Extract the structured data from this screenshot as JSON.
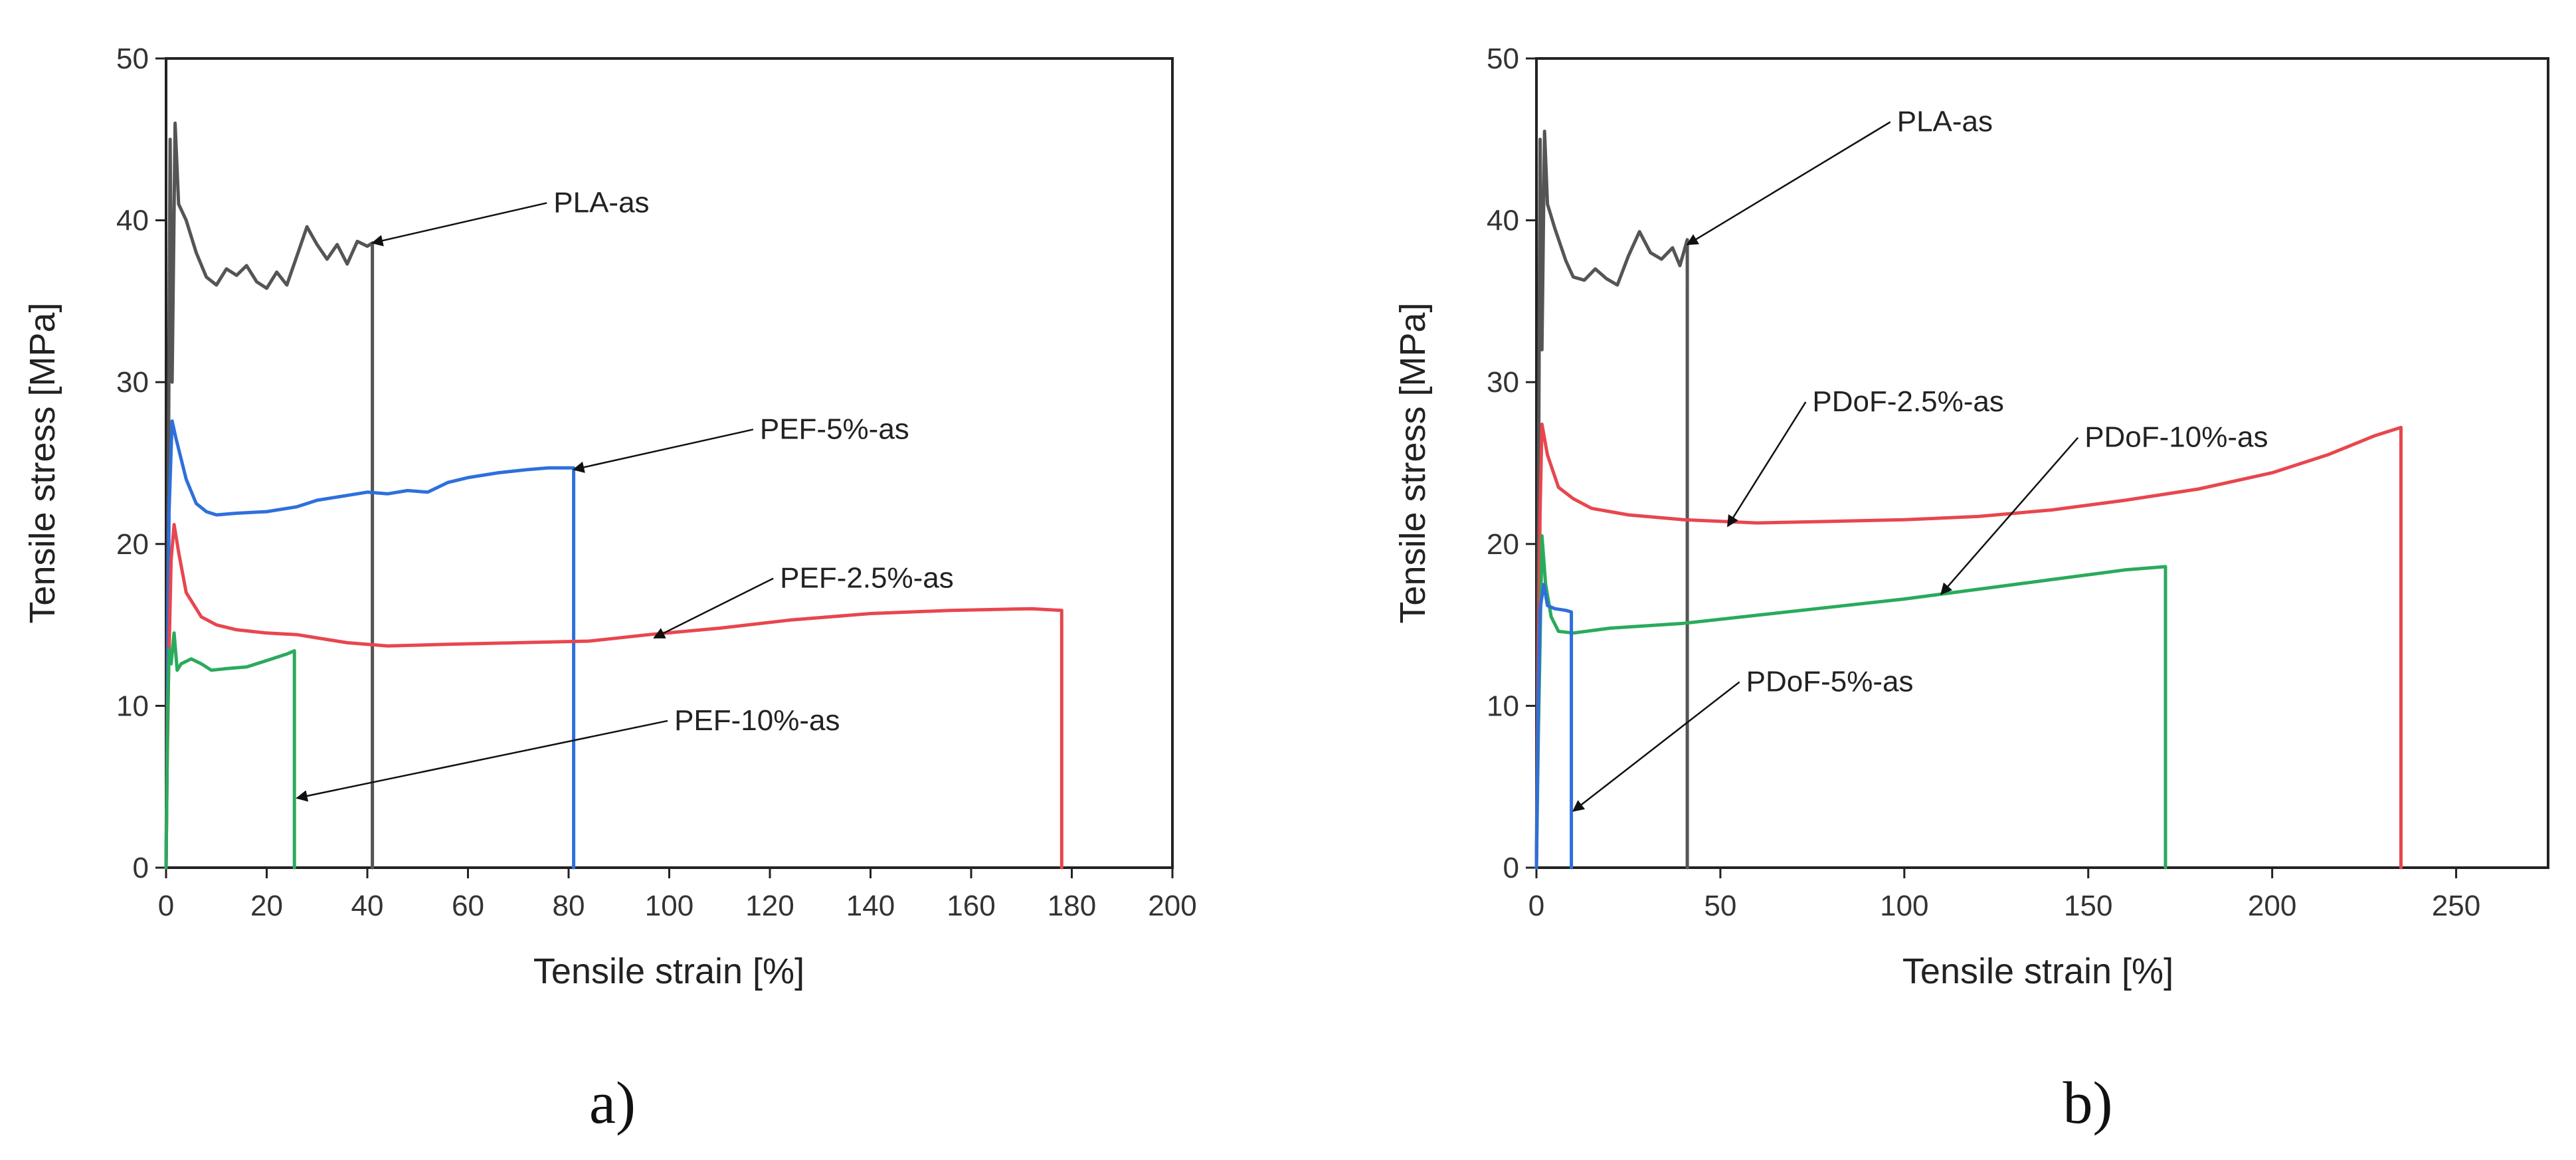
{
  "figure": {
    "panel_labels": [
      "a)",
      "b)"
    ]
  },
  "chart_data": [
    {
      "type": "line",
      "panel": "a)",
      "xlabel": "Tensile strain [%]",
      "ylabel": "Tensile stress [MPa]",
      "xlim": [
        0,
        200
      ],
      "ylim": [
        0,
        50
      ],
      "xticks": [
        0,
        20,
        40,
        60,
        80,
        100,
        120,
        140,
        160,
        180,
        200
      ],
      "yticks": [
        0,
        10,
        20,
        30,
        40,
        50
      ],
      "grid": false,
      "series": [
        {
          "name": "PLA-as",
          "color": "#555555",
          "points": [
            [
              0,
              0
            ],
            [
              0.4,
              20
            ],
            [
              0.8,
              45
            ],
            [
              1.2,
              30
            ],
            [
              1.8,
              46
            ],
            [
              2.5,
              41
            ],
            [
              4,
              40
            ],
            [
              6,
              38
            ],
            [
              8,
              36.5
            ],
            [
              10,
              36
            ],
            [
              12,
              37
            ],
            [
              14,
              36.6
            ],
            [
              16,
              37.2
            ],
            [
              18,
              36.2
            ],
            [
              20,
              35.8
            ],
            [
              22,
              36.8
            ],
            [
              24,
              36
            ],
            [
              26,
              37.8
            ],
            [
              28,
              39.6
            ],
            [
              30,
              38.5
            ],
            [
              32,
              37.6
            ],
            [
              34,
              38.5
            ],
            [
              36,
              37.3
            ],
            [
              38,
              38.7
            ],
            [
              40,
              38.4
            ],
            [
              41,
              38.6
            ],
            [
              41,
              0
            ]
          ]
        },
        {
          "name": "PEF-5%-as",
          "color": "#2e6fdc",
          "points": [
            [
              0,
              0
            ],
            [
              0.3,
              10
            ],
            [
              0.6,
              22
            ],
            [
              1.2,
              27.6
            ],
            [
              2,
              26.5
            ],
            [
              4,
              24
            ],
            [
              6,
              22.5
            ],
            [
              8,
              22
            ],
            [
              10,
              21.8
            ],
            [
              14,
              21.9
            ],
            [
              20,
              22
            ],
            [
              26,
              22.3
            ],
            [
              30,
              22.7
            ],
            [
              36,
              23
            ],
            [
              40,
              23.2
            ],
            [
              44,
              23.1
            ],
            [
              48,
              23.3
            ],
            [
              52,
              23.2
            ],
            [
              56,
              23.8
            ],
            [
              60,
              24.1
            ],
            [
              66,
              24.4
            ],
            [
              72,
              24.6
            ],
            [
              76,
              24.7
            ],
            [
              81,
              24.7
            ],
            [
              81,
              0
            ]
          ]
        },
        {
          "name": "PEF-2.5%-as",
          "color": "#e8464e",
          "points": [
            [
              0,
              0
            ],
            [
              0.2,
              6
            ],
            [
              0.5,
              12
            ],
            [
              1,
              19
            ],
            [
              1.6,
              21.2
            ],
            [
              2.5,
              19.5
            ],
            [
              4,
              17
            ],
            [
              7,
              15.5
            ],
            [
              10,
              15
            ],
            [
              14,
              14.7
            ],
            [
              20,
              14.5
            ],
            [
              26,
              14.4
            ],
            [
              30,
              14.2
            ],
            [
              36,
              13.9
            ],
            [
              44,
              13.7
            ],
            [
              56,
              13.8
            ],
            [
              70,
              13.9
            ],
            [
              84,
              14
            ],
            [
              96,
              14.4
            ],
            [
              110,
              14.8
            ],
            [
              124,
              15.3
            ],
            [
              140,
              15.7
            ],
            [
              156,
              15.9
            ],
            [
              172,
              16
            ],
            [
              178,
              15.9
            ],
            [
              178,
              0
            ]
          ]
        },
        {
          "name": "PEF-10%-as",
          "color": "#2aaa5c",
          "points": [
            [
              0,
              0
            ],
            [
              0.3,
              9
            ],
            [
              0.6,
              13.5
            ],
            [
              1,
              12.6
            ],
            [
              1.6,
              14.5
            ],
            [
              2.2,
              12.2
            ],
            [
              3,
              12.6
            ],
            [
              5,
              12.9
            ],
            [
              7,
              12.6
            ],
            [
              9,
              12.2
            ],
            [
              12,
              12.3
            ],
            [
              16,
              12.4
            ],
            [
              20,
              12.8
            ],
            [
              24,
              13.2
            ],
            [
              25.5,
              13.4
            ],
            [
              25.5,
              0
            ]
          ]
        }
      ],
      "annotations": [
        {
          "text": "PLA-as",
          "target": [
            41,
            38.6
          ],
          "text_at": [
            77,
            40.5
          ]
        },
        {
          "text": "PEF-5%-as",
          "target": [
            81,
            24.6
          ],
          "text_at": [
            118,
            26.5
          ]
        },
        {
          "text": "PEF-2.5%-as",
          "target": [
            97,
            14.2
          ],
          "text_at": [
            122,
            17.3
          ]
        },
        {
          "text": "PEF-10%-as",
          "target": [
            26,
            4.3
          ],
          "text_at": [
            101,
            8.5
          ]
        }
      ]
    },
    {
      "type": "line",
      "panel": "b)",
      "xlabel": "Tensile strain [%]",
      "ylabel": "Tensile stress [MPa]",
      "xlim": [
        0,
        275
      ],
      "ylim": [
        0,
        50
      ],
      "xticks": [
        0,
        50,
        100,
        150,
        200,
        250
      ],
      "yticks": [
        0,
        10,
        20,
        30,
        40,
        50
      ],
      "grid": false,
      "series": [
        {
          "name": "PLA-as",
          "color": "#555555",
          "points": [
            [
              0,
              0
            ],
            [
              0.5,
              20
            ],
            [
              1,
              45
            ],
            [
              1.5,
              32
            ],
            [
              2.2,
              45.5
            ],
            [
              3,
              41
            ],
            [
              5,
              39.5
            ],
            [
              8,
              37.5
            ],
            [
              10,
              36.5
            ],
            [
              13,
              36.3
            ],
            [
              16,
              37
            ],
            [
              19,
              36.4
            ],
            [
              22,
              36
            ],
            [
              25,
              37.8
            ],
            [
              28,
              39.3
            ],
            [
              31,
              38
            ],
            [
              34,
              37.6
            ],
            [
              37,
              38.3
            ],
            [
              39,
              37.2
            ],
            [
              41,
              38.8
            ],
            [
              41,
              0
            ]
          ]
        },
        {
          "name": "PDoF-2.5%-as",
          "color": "#e8464e",
          "points": [
            [
              0,
              0
            ],
            [
              0.5,
              12
            ],
            [
              1,
              22
            ],
            [
              1.5,
              27.4
            ],
            [
              3,
              25.5
            ],
            [
              6,
              23.5
            ],
            [
              10,
              22.8
            ],
            [
              15,
              22.2
            ],
            [
              25,
              21.8
            ],
            [
              40,
              21.5
            ],
            [
              60,
              21.3
            ],
            [
              80,
              21.4
            ],
            [
              100,
              21.5
            ],
            [
              120,
              21.7
            ],
            [
              140,
              22.1
            ],
            [
              160,
              22.7
            ],
            [
              180,
              23.4
            ],
            [
              200,
              24.4
            ],
            [
              215,
              25.5
            ],
            [
              228,
              26.7
            ],
            [
              235,
              27.2
            ],
            [
              235,
              0
            ]
          ]
        },
        {
          "name": "PDoF-10%-as",
          "color": "#2aaa5c",
          "points": [
            [
              0,
              0
            ],
            [
              0.5,
              8
            ],
            [
              1,
              14
            ],
            [
              1.5,
              20.5
            ],
            [
              2.5,
              17.5
            ],
            [
              4,
              15.5
            ],
            [
              6,
              14.6
            ],
            [
              10,
              14.5
            ],
            [
              20,
              14.8
            ],
            [
              40,
              15.1
            ],
            [
              60,
              15.6
            ],
            [
              80,
              16.1
            ],
            [
              100,
              16.6
            ],
            [
              120,
              17.2
            ],
            [
              140,
              17.8
            ],
            [
              160,
              18.4
            ],
            [
              171,
              18.6
            ],
            [
              171,
              0
            ]
          ]
        },
        {
          "name": "PDoF-5%-as",
          "color": "#2e6fdc",
          "points": [
            [
              0,
              0
            ],
            [
              0.5,
              10
            ],
            [
              1,
              16
            ],
            [
              2,
              17.5
            ],
            [
              3,
              16.2
            ],
            [
              5,
              16
            ],
            [
              8,
              15.9
            ],
            [
              9.5,
              15.8
            ],
            [
              9.5,
              0
            ]
          ]
        }
      ],
      "annotations": [
        {
          "text": "PLA-as",
          "target": [
            41,
            38.5
          ],
          "text_at": [
            98,
            45.5
          ]
        },
        {
          "text": "PDoF-2.5%-as",
          "target": [
            52,
            21.1
          ],
          "text_at": [
            75,
            28.2
          ]
        },
        {
          "text": "PDoF-10%-as",
          "target": [
            110,
            16.9
          ],
          "text_at": [
            149,
            26
          ]
        },
        {
          "text": "PDoF-5%-as",
          "target": [
            10,
            3.5
          ],
          "text_at": [
            57,
            10.9
          ]
        }
      ]
    }
  ]
}
